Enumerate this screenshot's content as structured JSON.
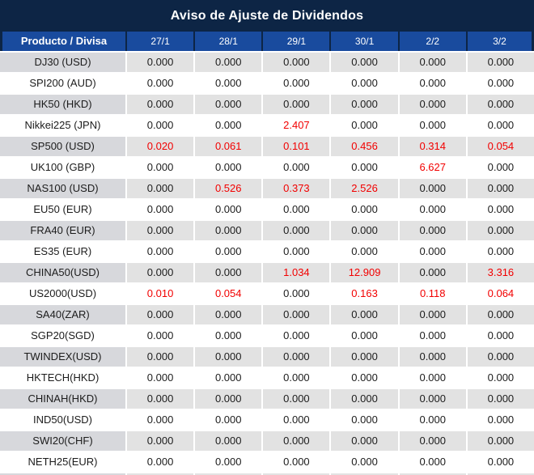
{
  "title": "Aviso de Ajuste de Dividendos",
  "colors": {
    "navy": "#0d2545",
    "header_blue": "#194b9e",
    "row_gray_product": "#d7d8dc",
    "row_gray_value": "#e2e2e2",
    "row_white": "#ffffff",
    "value_red": "#f20000",
    "text_dark": "#1c1c1c",
    "text_white": "#ffffff"
  },
  "table": {
    "header": {
      "product_label": "Producto / Divisa",
      "dates": [
        "27/1",
        "28/1",
        "29/1",
        "30/1",
        "2/2",
        "3/2"
      ]
    },
    "rows": [
      {
        "product": "DJ30 (USD)",
        "values": [
          "0.000",
          "0.000",
          "0.000",
          "0.000",
          "0.000",
          "0.000"
        ],
        "red": []
      },
      {
        "product": "SPI200 (AUD)",
        "values": [
          "0.000",
          "0.000",
          "0.000",
          "0.000",
          "0.000",
          "0.000"
        ],
        "red": []
      },
      {
        "product": "HK50 (HKD)",
        "values": [
          "0.000",
          "0.000",
          "0.000",
          "0.000",
          "0.000",
          "0.000"
        ],
        "red": []
      },
      {
        "product": "Nikkei225 (JPN)",
        "values": [
          "0.000",
          "0.000",
          "2.407",
          "0.000",
          "0.000",
          "0.000"
        ],
        "red": [
          2
        ]
      },
      {
        "product": "SP500 (USD)",
        "values": [
          "0.020",
          "0.061",
          "0.101",
          "0.456",
          "0.314",
          "0.054"
        ],
        "red": [
          0,
          1,
          2,
          3,
          4,
          5
        ]
      },
      {
        "product": "UK100 (GBP)",
        "values": [
          "0.000",
          "0.000",
          "0.000",
          "0.000",
          "6.627",
          "0.000"
        ],
        "red": [
          4
        ]
      },
      {
        "product": "NAS100 (USD)",
        "values": [
          "0.000",
          "0.526",
          "0.373",
          "2.526",
          "0.000",
          "0.000"
        ],
        "red": [
          1,
          2,
          3
        ]
      },
      {
        "product": "EU50 (EUR)",
        "values": [
          "0.000",
          "0.000",
          "0.000",
          "0.000",
          "0.000",
          "0.000"
        ],
        "red": []
      },
      {
        "product": "FRA40 (EUR)",
        "values": [
          "0.000",
          "0.000",
          "0.000",
          "0.000",
          "0.000",
          "0.000"
        ],
        "red": []
      },
      {
        "product": "ES35 (EUR)",
        "values": [
          "0.000",
          "0.000",
          "0.000",
          "0.000",
          "0.000",
          "0.000"
        ],
        "red": []
      },
      {
        "product": "CHINA50(USD)",
        "values": [
          "0.000",
          "0.000",
          "1.034",
          "12.909",
          "0.000",
          "3.316"
        ],
        "red": [
          2,
          3,
          5
        ]
      },
      {
        "product": "US2000(USD)",
        "values": [
          "0.010",
          "0.054",
          "0.000",
          "0.163",
          "0.118",
          "0.064"
        ],
        "red": [
          0,
          1,
          3,
          4,
          5
        ]
      },
      {
        "product": "SA40(ZAR)",
        "values": [
          "0.000",
          "0.000",
          "0.000",
          "0.000",
          "0.000",
          "0.000"
        ],
        "red": []
      },
      {
        "product": "SGP20(SGD)",
        "values": [
          "0.000",
          "0.000",
          "0.000",
          "0.000",
          "0.000",
          "0.000"
        ],
        "red": []
      },
      {
        "product": "TWINDEX(USD)",
        "values": [
          "0.000",
          "0.000",
          "0.000",
          "0.000",
          "0.000",
          "0.000"
        ],
        "red": []
      },
      {
        "product": "HKTECH(HKD)",
        "values": [
          "0.000",
          "0.000",
          "0.000",
          "0.000",
          "0.000",
          "0.000"
        ],
        "red": []
      },
      {
        "product": "CHINAH(HKD)",
        "values": [
          "0.000",
          "0.000",
          "0.000",
          "0.000",
          "0.000",
          "0.000"
        ],
        "red": []
      },
      {
        "product": "IND50(USD)",
        "values": [
          "0.000",
          "0.000",
          "0.000",
          "0.000",
          "0.000",
          "0.000"
        ],
        "red": []
      },
      {
        "product": "SWI20(CHF)",
        "values": [
          "0.000",
          "0.000",
          "0.000",
          "0.000",
          "0.000",
          "0.000"
        ],
        "red": []
      },
      {
        "product": "NETH25(EUR)",
        "values": [
          "0.000",
          "0.000",
          "0.000",
          "0.000",
          "0.000",
          "0.000"
        ],
        "red": []
      }
    ]
  }
}
